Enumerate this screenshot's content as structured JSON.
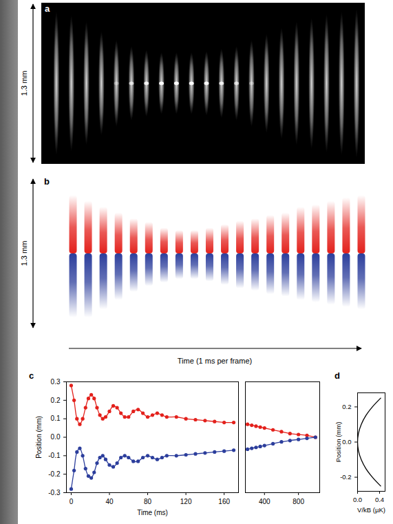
{
  "figure": {
    "image_panels": [
      {
        "letter": "a",
        "scale_label": "1.3 mm",
        "span_mm": 1.3,
        "half_length_mm": [
          0.58,
          0.55,
          0.5,
          0.42,
          0.35,
          0.3,
          0.27,
          0.25,
          0.25,
          0.25,
          0.26,
          0.28,
          0.3,
          0.35,
          0.4,
          0.45,
          0.5,
          0.53,
          0.56,
          0.58,
          0.6
        ]
      },
      {
        "letter": "b",
        "scale_label": "1.3 mm",
        "span_mm": 1.3,
        "upper_color": "#e3211c",
        "lower_color": "#2c3e9c",
        "upper_extent_mm": [
          0.5,
          0.45,
          0.4,
          0.35,
          0.3,
          0.27,
          0.22,
          0.2,
          0.2,
          0.22,
          0.25,
          0.28,
          0.3,
          0.33,
          0.35,
          0.4,
          0.42,
          0.45,
          0.48,
          0.5
        ],
        "lower_extent_mm": [
          0.55,
          0.55,
          0.48,
          0.4,
          0.33,
          0.28,
          0.25,
          0.22,
          0.22,
          0.24,
          0.27,
          0.3,
          0.32,
          0.35,
          0.37,
          0.4,
          0.42,
          0.44,
          0.46,
          0.48
        ]
      }
    ],
    "time_label": "Time (1 ms per frame)"
  },
  "chart_data": [
    {
      "letter": "c",
      "type": "line",
      "marker": "circle",
      "line_style": "solid",
      "x_label": "Time (ms)",
      "y_label": "Position (mm)",
      "x": [
        0,
        3,
        6,
        9,
        12,
        15,
        18,
        21,
        24,
        27,
        30,
        33,
        36,
        40,
        44,
        48,
        52,
        56,
        60,
        65,
        70,
        75,
        80,
        85,
        90,
        95,
        100,
        110,
        120,
        130,
        140,
        150,
        160,
        170
      ],
      "series": [
        {
          "color": "#e3211c",
          "values": [
            0.28,
            0.2,
            0.1,
            0.07,
            0.1,
            0.16,
            0.21,
            0.23,
            0.21,
            0.16,
            0.12,
            0.1,
            0.11,
            0.14,
            0.17,
            0.16,
            0.13,
            0.11,
            0.11,
            0.14,
            0.15,
            0.13,
            0.11,
            0.12,
            0.13,
            0.12,
            0.11,
            0.11,
            0.1,
            0.095,
            0.09,
            0.085,
            0.08,
            0.08
          ]
        },
        {
          "color": "#2c3e9c",
          "values": [
            -0.28,
            -0.18,
            -0.08,
            -0.06,
            -0.1,
            -0.17,
            -0.21,
            -0.22,
            -0.19,
            -0.14,
            -0.11,
            -0.1,
            -0.12,
            -0.15,
            -0.16,
            -0.14,
            -0.11,
            -0.1,
            -0.11,
            -0.13,
            -0.13,
            -0.11,
            -0.1,
            -0.11,
            -0.12,
            -0.11,
            -0.1,
            -0.1,
            -0.095,
            -0.09,
            -0.085,
            -0.08,
            -0.075,
            -0.07
          ]
        }
      ],
      "xlim": [
        -5,
        175
      ],
      "xticks": [
        0,
        40,
        80,
        120,
        160
      ],
      "ylim": [
        -0.3,
        0.3
      ],
      "yticks": [
        -0.3,
        -0.2,
        -0.1,
        {
          "value": 0,
          "label": "0.0"
        },
        0.1,
        0.2,
        0.3
      ]
    },
    {
      "type": "line",
      "marker": "circle",
      "line_style": "solid",
      "tick_labels": "x",
      "x": [
        200,
        250,
        300,
        350,
        400,
        500,
        600,
        700,
        800,
        900,
        1000
      ],
      "series": [
        {
          "color": "#e3211c",
          "values": [
            0.07,
            0.065,
            0.06,
            0.055,
            0.05,
            0.04,
            0.03,
            0.02,
            0.015,
            0.01,
            0
          ]
        },
        {
          "color": "#2c3e9c",
          "values": [
            -0.065,
            -0.06,
            -0.055,
            -0.05,
            -0.045,
            -0.035,
            -0.025,
            -0.018,
            -0.012,
            -0.006,
            0
          ]
        }
      ],
      "xlim": [
        175,
        1050
      ],
      "xticks": [
        400,
        800
      ],
      "ylim": [
        -0.3,
        0.3
      ]
    },
    {
      "letter": "d",
      "type": "line",
      "line_style": "solid",
      "x_label": "V/kB (µK)",
      "y_label": "Position (mm)",
      "series": [
        {
          "color": "#000000",
          "x": [
            0.42,
            0.27,
            0.15,
            0.067,
            0.017,
            0,
            0.017,
            0.067,
            0.15,
            0.27,
            0.42
          ],
          "values": [
            -0.25,
            -0.2,
            -0.15,
            -0.1,
            -0.05,
            0,
            0.05,
            0.1,
            0.15,
            0.2,
            0.25
          ]
        }
      ],
      "xlim": [
        0,
        0.5
      ],
      "xticks": [
        {
          "value": 0,
          "label": "0.0"
        },
        0.4
      ],
      "ylim": [
        -0.28,
        0.28
      ],
      "yticks": [
        -0.2,
        {
          "value": 0,
          "label": "0.0"
        },
        0.2
      ]
    }
  ]
}
